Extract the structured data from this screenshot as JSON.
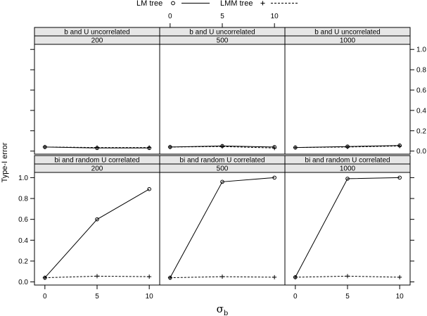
{
  "chart_data": {
    "type": "line",
    "ylabel": "Type-I error",
    "xlabel_symbol": "σ",
    "xlabel_subscript": "b",
    "x_ticks": [
      0,
      5,
      10
    ],
    "y_ticks": [
      0.0,
      0.2,
      0.4,
      0.6,
      0.8,
      1.0
    ],
    "x_range": [
      -1,
      11
    ],
    "y_range": [
      -0.03,
      1.05
    ],
    "legend": [
      {
        "name": "LM tree",
        "marker": "o",
        "line": "solid"
      },
      {
        "name": "LMM tree",
        "marker": "+",
        "line": "dashed"
      }
    ],
    "panels": [
      {
        "row": "top",
        "col": 0,
        "strip1": "b and U uncorrelated",
        "strip2": "200",
        "series": [
          {
            "name": "LM tree",
            "x": [
              0,
              5,
              10
            ],
            "y": [
              0.04,
              0.03,
              0.03
            ]
          },
          {
            "name": "LMM tree",
            "x": [
              0,
              5,
              10
            ],
            "y": [
              0.04,
              0.035,
              0.035
            ]
          }
        ]
      },
      {
        "row": "top",
        "col": 1,
        "strip1": "b and U uncorrelated",
        "strip2": "500",
        "series": [
          {
            "name": "LM tree",
            "x": [
              0,
              5,
              10
            ],
            "y": [
              0.04,
              0.05,
              0.04
            ]
          },
          {
            "name": "LMM tree",
            "x": [
              0,
              5,
              10
            ],
            "y": [
              0.04,
              0.045,
              0.03
            ]
          }
        ]
      },
      {
        "row": "top",
        "col": 2,
        "strip1": "b and U uncorrelated",
        "strip2": "1000",
        "series": [
          {
            "name": "LM tree",
            "x": [
              0,
              5,
              10
            ],
            "y": [
              0.035,
              0.045,
              0.055
            ]
          },
          {
            "name": "LMM tree",
            "x": [
              0,
              5,
              10
            ],
            "y": [
              0.035,
              0.04,
              0.05
            ]
          }
        ]
      },
      {
        "row": "bottom",
        "col": 0,
        "strip1": "bi and random U correlated",
        "strip2": "200",
        "series": [
          {
            "name": "LM tree",
            "x": [
              0,
              5,
              10
            ],
            "y": [
              0.04,
              0.6,
              0.89
            ]
          },
          {
            "name": "LMM tree",
            "x": [
              0,
              5,
              10
            ],
            "y": [
              0.04,
              0.055,
              0.05
            ]
          }
        ]
      },
      {
        "row": "bottom",
        "col": 1,
        "strip1": "bi and random U correlated",
        "strip2": "500",
        "series": [
          {
            "name": "LM tree",
            "x": [
              0,
              5,
              10
            ],
            "y": [
              0.04,
              0.96,
              1.0
            ]
          },
          {
            "name": "LMM tree",
            "x": [
              0,
              5,
              10
            ],
            "y": [
              0.04,
              0.05,
              0.045
            ]
          }
        ]
      },
      {
        "row": "bottom",
        "col": 2,
        "strip1": "bi and random U correlated",
        "strip2": "1000",
        "series": [
          {
            "name": "LM tree",
            "x": [
              0,
              5,
              10
            ],
            "y": [
              0.045,
              0.99,
              1.0
            ]
          },
          {
            "name": "LMM tree",
            "x": [
              0,
              5,
              10
            ],
            "y": [
              0.045,
              0.055,
              0.045
            ]
          }
        ]
      }
    ]
  }
}
